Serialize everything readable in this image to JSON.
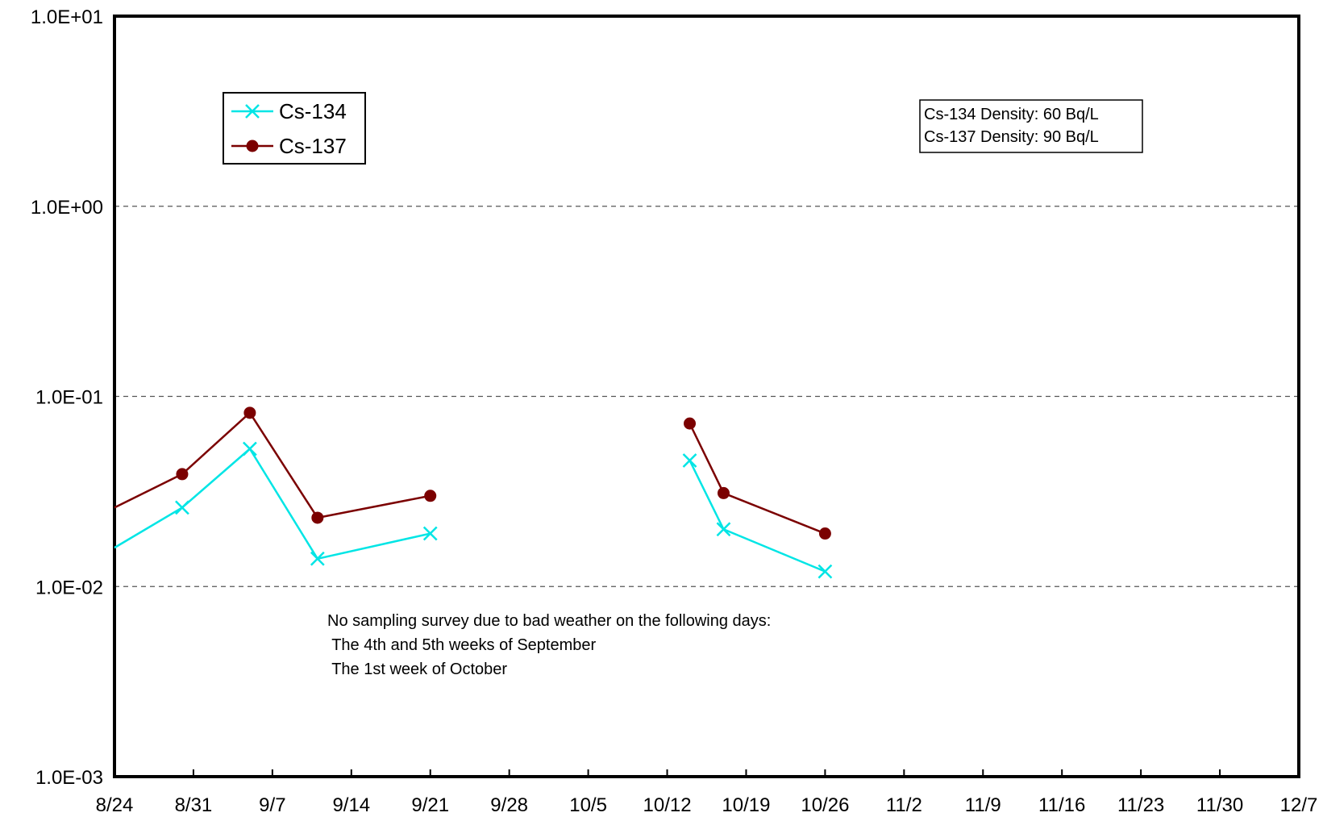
{
  "chart_data": {
    "type": "line",
    "y_scale": "log",
    "ylim": [
      0.001,
      10
    ],
    "y_ticks": [
      "1.0E+01",
      "1.0E+00",
      "1.0E-01",
      "1.0E-02",
      "1.0E-03"
    ],
    "xlim": [
      "8/24",
      "12/7"
    ],
    "x_tick_labels": [
      "8/24",
      "8/31",
      "9/7",
      "9/14",
      "9/21",
      "9/28",
      "10/5",
      "10/12",
      "10/19",
      "10/26",
      "11/2",
      "11/9",
      "11/16",
      "11/23",
      "11/30",
      "12/7"
    ],
    "grid": "dashed horizontal at each decade",
    "legend_position": "top-left",
    "series": [
      {
        "name": "Cs-134",
        "color": "#00e5e5",
        "marker": "x",
        "segments": [
          {
            "x": [
              "8/24",
              "8/30",
              "9/5",
              "9/11",
              "9/21"
            ],
            "y": [
              0.016,
              0.026,
              0.053,
              0.014,
              0.019
            ]
          },
          {
            "x": [
              "10/14",
              "10/17",
              "10/26"
            ],
            "y": [
              0.046,
              0.02,
              0.012
            ]
          }
        ]
      },
      {
        "name": "Cs-137",
        "color": "#7b0000",
        "marker": "circle",
        "segments": [
          {
            "x": [
              "8/24",
              "8/30",
              "9/5",
              "9/11",
              "9/21"
            ],
            "y": [
              0.026,
              0.039,
              0.082,
              0.023,
              0.03
            ]
          },
          {
            "x": [
              "10/14",
              "10/17",
              "10/26"
            ],
            "y": [
              0.072,
              0.031,
              0.019
            ]
          }
        ]
      }
    ],
    "density_box": [
      "Cs-134 Density: 60 Bq/L",
      "Cs-137 Density: 90 Bq/L"
    ],
    "note": [
      "No sampling survey due to bad weather on the following days:",
      " The 4th and 5th weeks of September",
      " The 1st week of October"
    ]
  }
}
